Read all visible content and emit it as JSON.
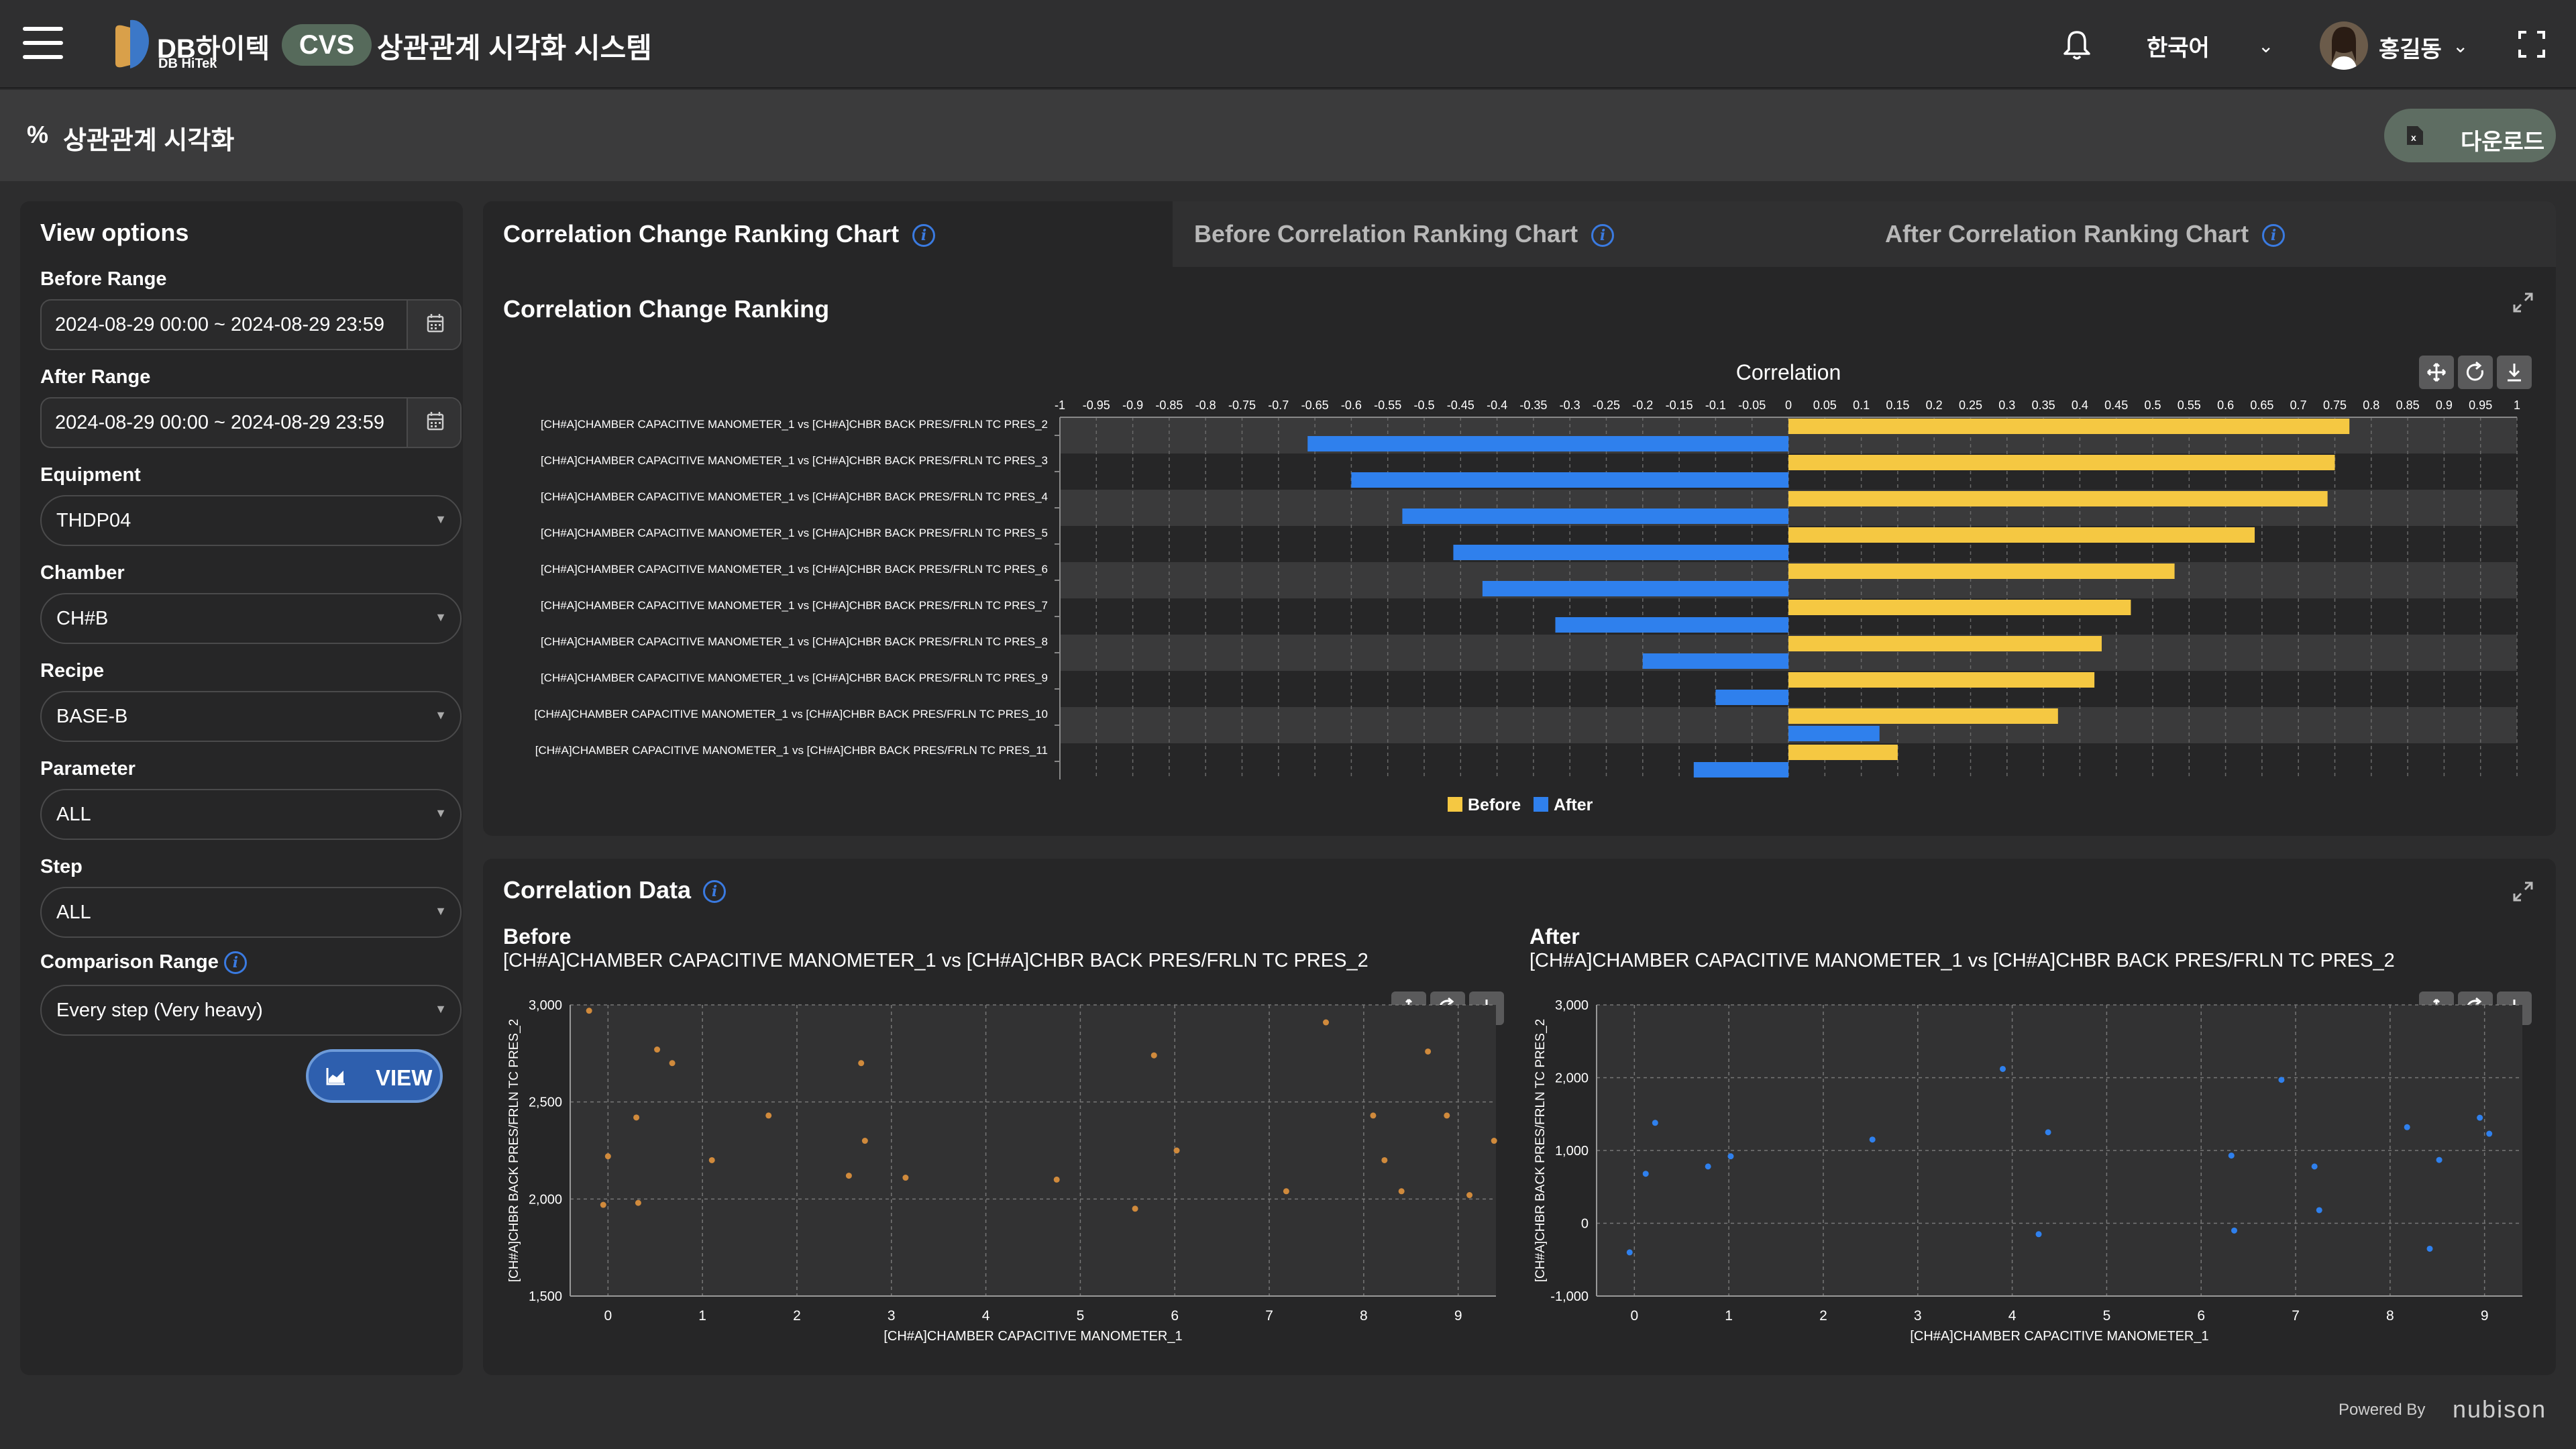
{
  "header": {
    "brand_name": "DB하이텍",
    "brand_sub": "DB HiTek",
    "badge": "CVS",
    "system_title": "상관관계 시각화 시스템",
    "language": "한국어",
    "user_name": "홍길동"
  },
  "subheader": {
    "icon": "%",
    "title": "상관관계 시각화",
    "download_label": "다운로드"
  },
  "view_options": {
    "title": "View options",
    "before_range_label": "Before Range",
    "before_range_value": "2024-08-29 00:00 ~ 2024-08-29 23:59",
    "after_range_label": "After Range",
    "after_range_value": "2024-08-29 00:00 ~ 2024-08-29 23:59",
    "equipment_label": "Equipment",
    "equipment_value": "THDP04",
    "chamber_label": "Chamber",
    "chamber_value": "CH#B",
    "recipe_label": "Recipe",
    "recipe_value": "BASE-B",
    "parameter_label": "Parameter",
    "parameter_value": "ALL",
    "step_label": "Step",
    "step_value": "ALL",
    "comparison_label": "Comparison Range",
    "comparison_value": "Every step (Very heavy)",
    "view_label": "VIEW"
  },
  "tabs": [
    {
      "label": "Correlation Change Ranking Chart"
    },
    {
      "label": "Before Correlation Ranking Chart"
    },
    {
      "label": "After Correlation Ranking Chart"
    }
  ],
  "ranking_section": {
    "heading": "Correlation Change Ranking"
  },
  "data_section": {
    "heading": "Correlation Data",
    "before_title": "Before",
    "before_sub": "[CH#A]CHAMBER CAPACITIVE MANOMETER_1 vs [CH#A]CHBR BACK PRES/FRLN TC PRES_2",
    "after_title": "After",
    "after_sub": "[CH#A]CHAMBER CAPACITIVE MANOMETER_1 vs [CH#A]CHBR BACK PRES/FRLN TC PRES_2"
  },
  "footer": {
    "powered": "Powered By",
    "brand": "nubison"
  },
  "colors": {
    "before": "#f5c842",
    "after": "#2f80ed",
    "before_scatter": "#d08a3c",
    "after_scatter": "#2f80ed"
  },
  "chart_data": [
    {
      "type": "bar",
      "orientation": "horizontal",
      "title": "Correlation",
      "xlim": [
        -1,
        1
      ],
      "x_ticks": [
        "-1",
        "-0.95",
        "-0.9",
        "-0.85",
        "-0.8",
        "-0.75",
        "-0.7",
        "-0.65",
        "-0.6",
        "-0.55",
        "-0.5",
        "-0.45",
        "-0.4",
        "-0.35",
        "-0.3",
        "-0.25",
        "-0.2",
        "-0.15",
        "-0.1",
        "-0.05",
        "0",
        "0.05",
        "0.1",
        "0.15",
        "0.2",
        "0.25",
        "0.3",
        "0.35",
        "0.4",
        "0.45",
        "0.5",
        "0.55",
        "0.6",
        "0.65",
        "0.7",
        "0.75",
        "0.8",
        "0.85",
        "0.9",
        "0.95",
        "1"
      ],
      "categories": [
        "[CH#A]CHAMBER CAPACITIVE MANOMETER_1 vs [CH#A]CHBR BACK PRES/FRLN TC PRES_2",
        "[CH#A]CHAMBER CAPACITIVE MANOMETER_1 vs [CH#A]CHBR BACK PRES/FRLN TC PRES_3",
        "[CH#A]CHAMBER CAPACITIVE MANOMETER_1 vs [CH#A]CHBR BACK PRES/FRLN TC PRES_4",
        "[CH#A]CHAMBER CAPACITIVE MANOMETER_1 vs [CH#A]CHBR BACK PRES/FRLN TC PRES_5",
        "[CH#A]CHAMBER CAPACITIVE MANOMETER_1 vs [CH#A]CHBR BACK PRES/FRLN TC PRES_6",
        "[CH#A]CHAMBER CAPACITIVE MANOMETER_1 vs [CH#A]CHBR BACK PRES/FRLN TC PRES_7",
        "[CH#A]CHAMBER CAPACITIVE MANOMETER_1 vs [CH#A]CHBR BACK PRES/FRLN TC PRES_8",
        "[CH#A]CHAMBER CAPACITIVE MANOMETER_1 vs [CH#A]CHBR BACK PRES/FRLN TC PRES_9",
        "[CH#A]CHAMBER CAPACITIVE MANOMETER_1 vs [CH#A]CHBR BACK PRES/FRLN TC PRES_10",
        "[CH#A]CHAMBER CAPACITIVE MANOMETER_1 vs [CH#A]CHBR BACK PRES/FRLN TC PRES_11"
      ],
      "series": [
        {
          "name": "Before",
          "values": [
            0.77,
            0.75,
            0.74,
            0.64,
            0.53,
            0.47,
            0.43,
            0.42,
            0.37,
            0.15
          ]
        },
        {
          "name": "After",
          "values": [
            -0.66,
            -0.6,
            -0.53,
            -0.46,
            -0.42,
            -0.32,
            -0.2,
            -0.1,
            0.125,
            -0.13
          ]
        }
      ],
      "legend": "bottom-center",
      "grid": true
    },
    {
      "type": "scatter",
      "title": "Before",
      "xlabel": "[CH#A]CHAMBER CAPACITIVE MANOMETER_1",
      "ylabel": "[CH#A]CHBR BACK PRES/FRLN TC PRES_2",
      "xlim": [
        -0.4,
        9.4
      ],
      "ylim": [
        1500,
        3000
      ],
      "x_ticks": [
        "0",
        "1",
        "2",
        "3",
        "4",
        "5",
        "6",
        "7",
        "8",
        "9"
      ],
      "y_ticks": [
        "1,500",
        "2,000",
        "2,500",
        "3,000"
      ],
      "points": [
        [
          -0.2,
          2970
        ],
        [
          -0.05,
          1970
        ],
        [
          0,
          2220
        ],
        [
          0.3,
          2420
        ],
        [
          0.32,
          1980
        ],
        [
          0.52,
          2770
        ],
        [
          0.68,
          2700
        ],
        [
          1.1,
          2200
        ],
        [
          1.7,
          2430
        ],
        [
          2.55,
          2120
        ],
        [
          2.68,
          2700
        ],
        [
          2.72,
          2300
        ],
        [
          3.15,
          2110
        ],
        [
          4.75,
          2100
        ],
        [
          5.58,
          1950
        ],
        [
          5.78,
          2740
        ],
        [
          6.02,
          2250
        ],
        [
          7.18,
          2040
        ],
        [
          7.6,
          2910
        ],
        [
          8.1,
          2430
        ],
        [
          8.22,
          2200
        ],
        [
          8.4,
          2040
        ],
        [
          8.68,
          2760
        ],
        [
          8.88,
          2430
        ],
        [
          9.12,
          2020
        ],
        [
          9.38,
          2300
        ]
      ],
      "grid": true
    },
    {
      "type": "scatter",
      "title": "After",
      "xlabel": "[CH#A]CHAMBER CAPACITIVE MANOMETER_1",
      "ylabel": "[CH#A]CHBR BACK PRES/FRLN TC PRES_2",
      "xlim": [
        -0.4,
        9.4
      ],
      "ylim": [
        -1000,
        3000
      ],
      "x_ticks": [
        "0",
        "1",
        "2",
        "3",
        "4",
        "5",
        "6",
        "7",
        "8",
        "9"
      ],
      "y_ticks": [
        "-1,000",
        "0",
        "1,000",
        "2,000",
        "3,000"
      ],
      "points": [
        [
          -0.05,
          -400
        ],
        [
          0.12,
          680
        ],
        [
          0.22,
          1380
        ],
        [
          0.78,
          780
        ],
        [
          1.02,
          920
        ],
        [
          2.52,
          1150
        ],
        [
          3.9,
          2120
        ],
        [
          4.28,
          -150
        ],
        [
          4.38,
          1250
        ],
        [
          6.32,
          930
        ],
        [
          6.35,
          -100
        ],
        [
          6.85,
          1970
        ],
        [
          7.2,
          780
        ],
        [
          7.25,
          180
        ],
        [
          8.18,
          1320
        ],
        [
          8.42,
          -350
        ],
        [
          8.52,
          870
        ],
        [
          8.95,
          1450
        ],
        [
          9.05,
          1230
        ]
      ],
      "grid": true
    }
  ]
}
